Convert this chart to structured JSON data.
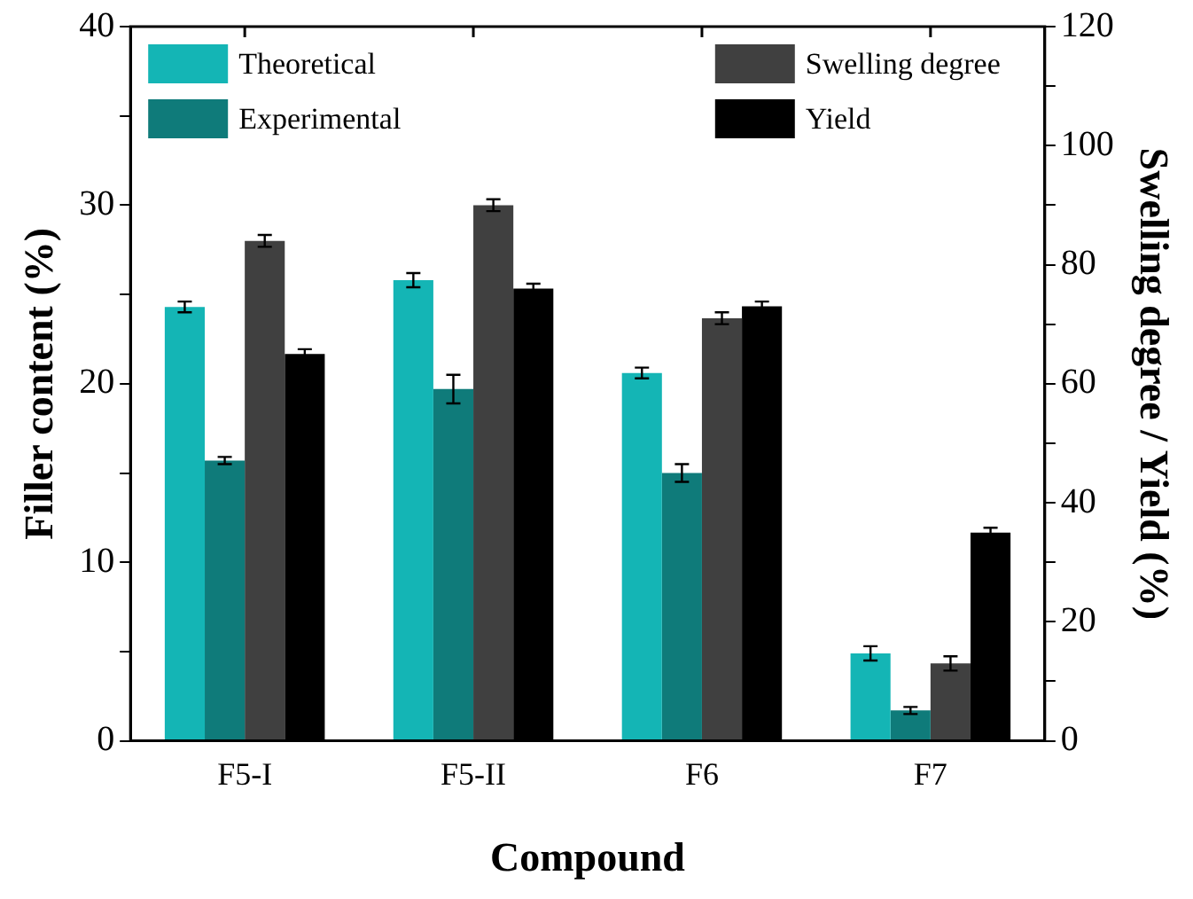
{
  "chart_data": {
    "type": "bar",
    "xlabel": "Compound",
    "ylabel": "Filler content (%)",
    "y2label": "Swelling degree / Yield (%)",
    "categories": [
      "F5-I",
      "F5-II",
      "F6",
      "F7"
    ],
    "series": [
      {
        "name": "Theoretical",
        "color": "#14b5b5",
        "values": [
          24.3,
          25.8,
          20.6,
          4.9
        ],
        "errors": [
          0.3,
          0.4,
          0.3,
          0.4
        ]
      },
      {
        "name": "Experimental",
        "color": "#0f7b7a",
        "values": [
          15.7,
          19.7,
          15.0,
          1.7
        ],
        "errors": [
          0.2,
          0.8,
          0.5,
          0.2
        ]
      },
      {
        "name": "Swelling degree",
        "color": "#404040",
        "axis": "y2",
        "values": [
          84,
          90,
          71,
          13
        ],
        "errors": [
          1,
          1,
          1,
          1.2
        ]
      },
      {
        "name": "Yield",
        "color": "#000000",
        "axis": "y2",
        "values": [
          65,
          76,
          73,
          35
        ],
        "errors": [
          0.8,
          0.8,
          0.8,
          0.8
        ]
      }
    ],
    "ylim": [
      0,
      40
    ],
    "yticks": [
      0,
      {
        "value": 5,
        "label": null
      },
      10,
      {
        "value": 15,
        "label": null
      },
      20,
      {
        "value": 25,
        "label": null
      },
      30,
      {
        "value": 35,
        "label": null
      },
      40
    ],
    "y2lim": [
      0,
      120
    ],
    "y2ticks": [
      0,
      {
        "value": 10,
        "label": null
      },
      20,
      {
        "value": 30,
        "label": null
      },
      40,
      {
        "value": 50,
        "label": null
      },
      60,
      {
        "value": 70,
        "label": null
      },
      80,
      {
        "value": 90,
        "label": null
      },
      100,
      {
        "value": 110,
        "label": null
      },
      120
    ],
    "grid": false,
    "legend": "top"
  }
}
